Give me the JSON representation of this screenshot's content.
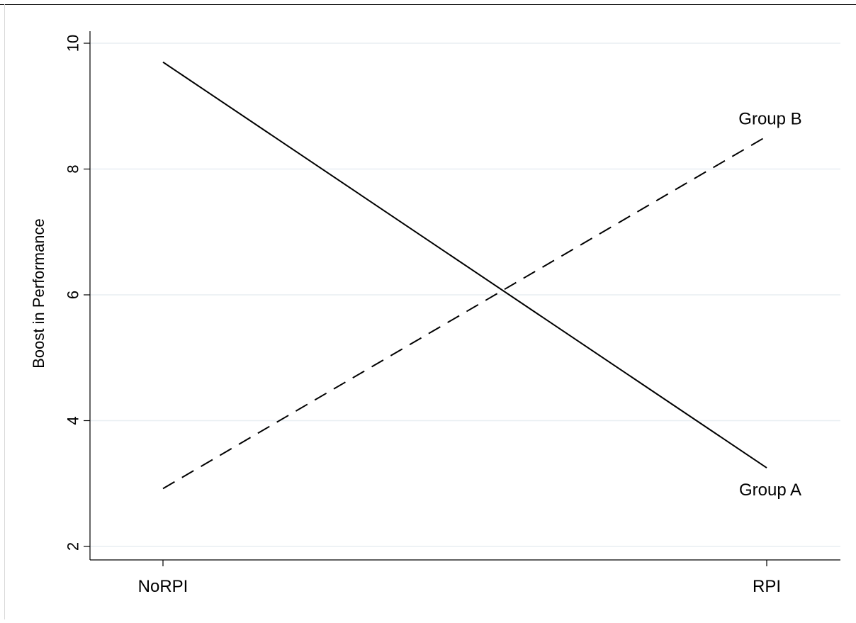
{
  "chart_data": {
    "type": "line",
    "title": "",
    "xlabel": "",
    "ylabel": "Boost in Performance",
    "categories": [
      "NoRPI",
      "RPI"
    ],
    "ylim": [
      2,
      10
    ],
    "yticks": [
      2,
      4,
      6,
      8,
      10
    ],
    "grid": true,
    "series": [
      {
        "name": "Group A",
        "values": [
          9.7,
          3.25
        ],
        "style": "solid",
        "color": "#000000"
      },
      {
        "name": "Group B",
        "values": [
          2.92,
          8.52
        ],
        "style": "dashed",
        "color": "#000000"
      }
    ],
    "colors": {
      "gridline": "#e8eef2",
      "axis": "#000000"
    }
  }
}
